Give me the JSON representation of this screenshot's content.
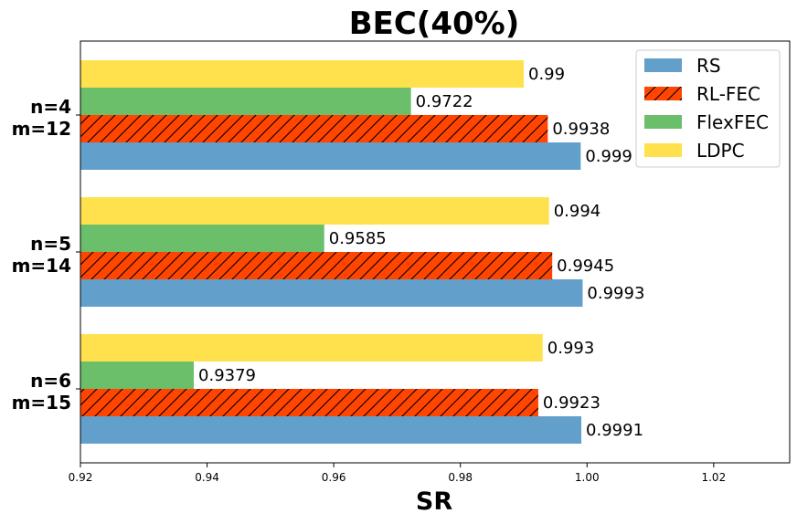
{
  "chart_data": {
    "type": "bar",
    "orientation": "horizontal",
    "title": "BEC(40%)",
    "xlabel": "SR",
    "ylabel": "",
    "xlim": [
      0.92,
      1.032
    ],
    "x_ticks": [
      "0.92",
      "0.94",
      "0.96",
      "0.98",
      "1.00",
      "1.02"
    ],
    "categories": [
      [
        "n=4",
        "m=12"
      ],
      [
        "n=5",
        "m=14"
      ],
      [
        "n=6",
        "m=15"
      ]
    ],
    "series": [
      {
        "name": "RS",
        "values": [
          0.999,
          0.9993,
          0.9991
        ],
        "labels": [
          "0.999",
          "0.9993",
          "0.9991"
        ],
        "color": "#62A0CB",
        "hatch": false
      },
      {
        "name": "RL-FEC",
        "values": [
          0.9938,
          0.9945,
          0.9923
        ],
        "labels": [
          "0.9938",
          "0.9945",
          "0.9923"
        ],
        "color": "#FF4500",
        "hatch": true
      },
      {
        "name": "FlexFEC",
        "values": [
          0.9722,
          0.9585,
          0.9379
        ],
        "labels": [
          "0.9722",
          "0.9585",
          "0.9379"
        ],
        "color": "#6BBF6A",
        "hatch": false
      },
      {
        "name": "LDPC",
        "values": [
          0.99,
          0.994,
          0.993
        ],
        "labels": [
          "0.99",
          "0.994",
          "0.993"
        ],
        "color": "#FFE14D",
        "hatch": false
      }
    ],
    "legend_position": "top-right",
    "grid": false
  }
}
